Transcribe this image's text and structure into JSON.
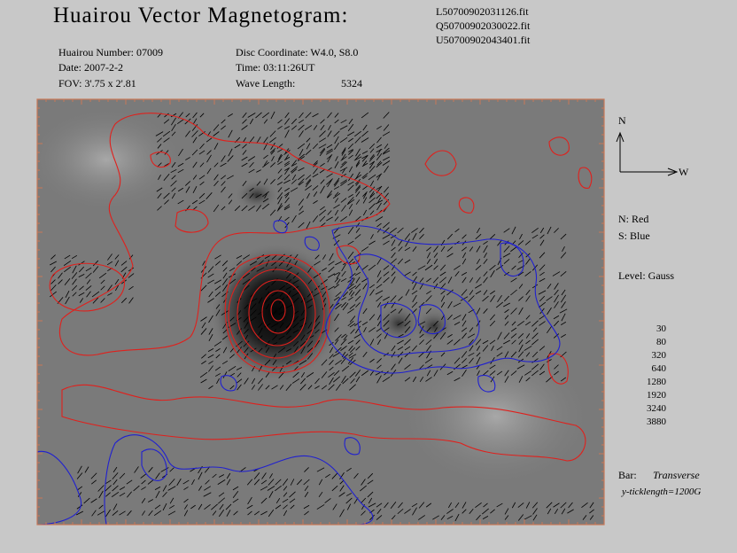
{
  "header": {
    "title": "Huairou Vector Magnetogram:",
    "files": [
      "L50700902031126.fit",
      "Q50700902030022.fit",
      "U50700902043401.fit"
    ]
  },
  "info": {
    "left": [
      "Huairou Number: 07009",
      "Date: 2007-2-2",
      "FOV:  3'.75 x 2'.81"
    ],
    "right": [
      "Disc Coordinate:  W4.0, S8.0",
      "Time: 03:11:26UT",
      "Wave Length:"
    ],
    "wavelength": "5324"
  },
  "compass": {
    "north": "N",
    "west": "W"
  },
  "legend": {
    "north": "N: Red",
    "south": "S: Blue",
    "level": "Level: Gauss",
    "levels": [
      30,
      80,
      320,
      640,
      1280,
      1920,
      3240,
      3880
    ],
    "bar_label": "Bar:",
    "bar_type": "Transverse",
    "ticklength": "y-ticklength=1200G"
  }
}
